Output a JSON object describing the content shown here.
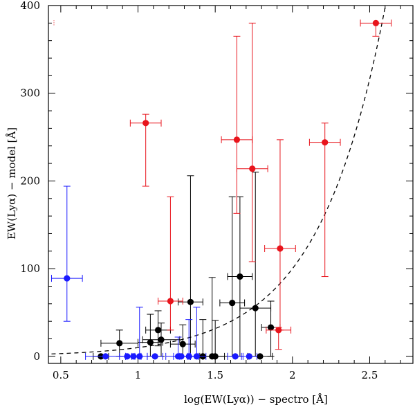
{
  "chart_data": {
    "type": "scatter",
    "title": "",
    "xlabel": "log(EW(Lyα)) − spectro [Å]",
    "ylabel": "EW(Lyα) − model    [Å]",
    "xlim": [
      0.42,
      2.78
    ],
    "ylim": [
      -8,
      400
    ],
    "xticks": [
      0.5,
      1,
      1.5,
      2,
      2.5
    ],
    "xtick_labels": [
      "0.5",
      "1",
      "1.5",
      "2",
      "2.5"
    ],
    "yticks": [
      0,
      100,
      200,
      300,
      400
    ],
    "ytick_labels": [
      "0",
      "100",
      "200",
      "300",
      "400"
    ],
    "colors": {
      "red": "#e8141c",
      "black": "#000000",
      "blue": "#1a1aff"
    },
    "curve": {
      "name": "y = 10^x",
      "style": "dashed",
      "x_from": 0.44,
      "x_to": 2.61
    },
    "series": [
      {
        "name": "red",
        "color": "#e8141c",
        "points": [
          {
            "x": 2.54,
            "y": 380,
            "xerr": 0.1,
            "ylo": 365,
            "yhi": 380
          },
          {
            "x": 1.05,
            "y": 266,
            "xerr": 0.1,
            "ylo": 194,
            "yhi": 276
          },
          {
            "x": 1.64,
            "y": 247,
            "xerr": 0.1,
            "ylo": 163,
            "yhi": 365
          },
          {
            "x": 2.21,
            "y": 244,
            "xerr": 0.1,
            "ylo": 91,
            "yhi": 266
          },
          {
            "x": 1.74,
            "y": 214,
            "xerr": 0.1,
            "ylo": 108,
            "yhi": 380
          },
          {
            "x": 1.21,
            "y": 63,
            "xerr": 0.08,
            "ylo": 30,
            "yhi": 182
          },
          {
            "x": 1.92,
            "y": 123,
            "xerr": 0.1,
            "ylo": 30,
            "yhi": 247
          },
          {
            "x": 1.91,
            "y": 30,
            "xerr": 0.08,
            "ylo": 8,
            "yhi": 33
          }
        ]
      },
      {
        "name": "black",
        "color": "#000000",
        "points": [
          {
            "x": 0.76,
            "y": 0,
            "xerr": 0.05,
            "ylo": 0,
            "yhi": 0
          },
          {
            "x": 0.88,
            "y": 15,
            "xerr": 0.12,
            "ylo": 0,
            "yhi": 30
          },
          {
            "x": 1.08,
            "y": 16,
            "xerr": 0.08,
            "ylo": 0,
            "yhi": 48
          },
          {
            "x": 1.13,
            "y": 30,
            "xerr": 0.08,
            "ylo": 12,
            "yhi": 52
          },
          {
            "x": 1.15,
            "y": 19,
            "xerr": 0.12,
            "ylo": 0,
            "yhi": 38
          },
          {
            "x": 1.29,
            "y": 14,
            "xerr": 0.08,
            "ylo": 0,
            "yhi": 36
          },
          {
            "x": 1.34,
            "y": 62,
            "xerr": 0.08,
            "ylo": 0,
            "yhi": 206
          },
          {
            "x": 1.42,
            "y": 0,
            "xerr": 0.08,
            "ylo": 0,
            "yhi": 42
          },
          {
            "x": 1.48,
            "y": 0,
            "xerr": 0.08,
            "ylo": 0,
            "yhi": 90
          },
          {
            "x": 1.5,
            "y": 0,
            "xerr": 0.08,
            "ylo": 0,
            "yhi": 41
          },
          {
            "x": 1.61,
            "y": 61,
            "xerr": 0.08,
            "ylo": 0,
            "yhi": 182
          },
          {
            "x": 1.66,
            "y": 91,
            "xerr": 0.08,
            "ylo": 0,
            "yhi": 182
          },
          {
            "x": 1.76,
            "y": 55,
            "xerr": 0.1,
            "ylo": 0,
            "yhi": 210
          },
          {
            "x": 1.79,
            "y": 0,
            "xerr": 0.08,
            "ylo": 0,
            "yhi": 0
          },
          {
            "x": 1.86,
            "y": 33,
            "xerr": 0.06,
            "ylo": 0,
            "yhi": 63
          }
        ]
      },
      {
        "name": "blue",
        "color": "#1a1aff",
        "points": [
          {
            "x": 0.54,
            "y": 89,
            "xerr": 0.1,
            "ylo": 40,
            "yhi": 194
          },
          {
            "x": 0.79,
            "y": 0,
            "xerr": 0.13,
            "ylo": 0,
            "yhi": 0
          },
          {
            "x": 0.93,
            "y": 0,
            "xerr": 0.05,
            "ylo": 0,
            "yhi": 0
          },
          {
            "x": 0.97,
            "y": 0,
            "xerr": 0.05,
            "ylo": 0,
            "yhi": 0
          },
          {
            "x": 1.01,
            "y": 0,
            "xerr": 0.05,
            "ylo": 0,
            "yhi": 56
          },
          {
            "x": 1.11,
            "y": 0,
            "xerr": 0.05,
            "ylo": 0,
            "yhi": 0
          },
          {
            "x": 1.26,
            "y": 0,
            "xerr": 0.08,
            "ylo": 0,
            "yhi": 22
          },
          {
            "x": 1.28,
            "y": 0,
            "xerr": 0.05,
            "ylo": 0,
            "yhi": 0
          },
          {
            "x": 1.33,
            "y": 0,
            "xerr": 0.06,
            "ylo": 0,
            "yhi": 42
          },
          {
            "x": 1.38,
            "y": 0,
            "xerr": 0.06,
            "ylo": 0,
            "yhi": 56
          },
          {
            "x": 1.63,
            "y": 0,
            "xerr": 0.05,
            "ylo": 0,
            "yhi": 0
          },
          {
            "x": 1.72,
            "y": 0,
            "xerr": 0.05,
            "ylo": 0,
            "yhi": 0
          }
        ]
      }
    ]
  }
}
